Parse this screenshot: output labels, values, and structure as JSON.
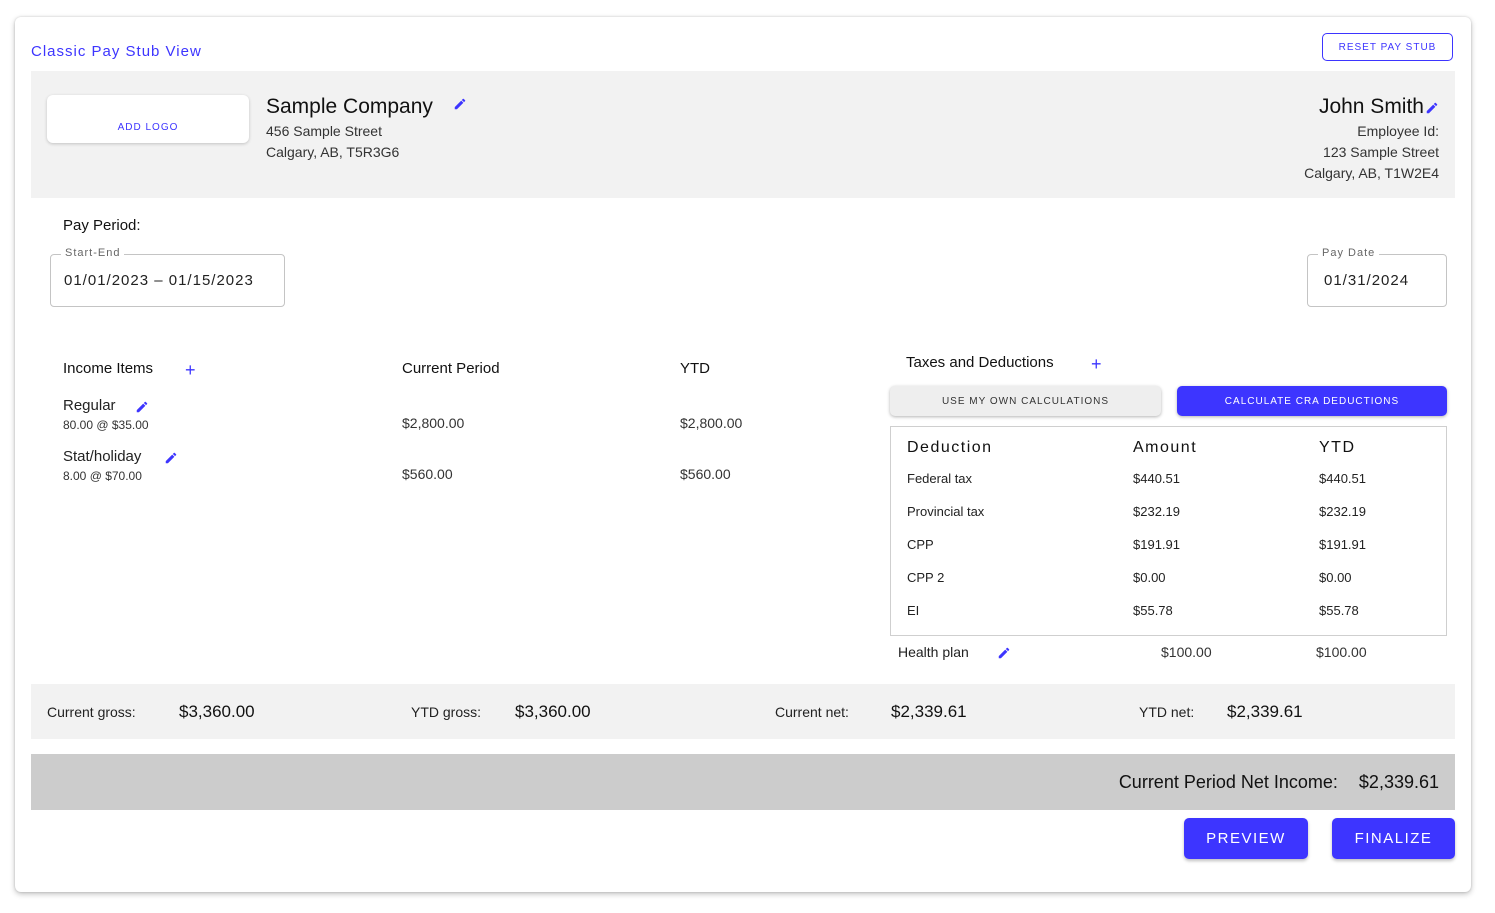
{
  "title": "Classic Pay Stub View",
  "reset_label": "RESET PAY STUB",
  "company": {
    "logo_label": "ADD LOGO",
    "name": "Sample Company",
    "address_line1": "456 Sample Street",
    "address_line2": "Calgary, AB, T5R3G6"
  },
  "employee": {
    "name": "John Smith",
    "id_label": "Employee Id:",
    "address_line1": "123 Sample Street",
    "address_line2": "Calgary, AB, T1W2E4"
  },
  "pay_period": {
    "heading": "Pay Period:",
    "range_label": "Start-End",
    "range_value": "01/01/2023 – 01/15/2023",
    "pay_date_label": "Pay Date",
    "pay_date_value": "01/31/2024"
  },
  "income": {
    "heading": "Income Items",
    "col_current": "Current Period",
    "col_ytd": "YTD",
    "items": [
      {
        "name": "Regular",
        "detail": "80.00 @ $35.00",
        "current": "$2,800.00",
        "ytd": "$2,800.00"
      },
      {
        "name": "Stat/holiday",
        "detail": "8.00 @ $70.00",
        "current": "$560.00",
        "ytd": "$560.00"
      }
    ]
  },
  "taxes": {
    "heading": "Taxes and Deductions",
    "own_calc_label": "USE MY OWN CALCULATIONS",
    "cra_calc_label": "CALCULATE CRA DEDUCTIONS",
    "col_deduction": "Deduction",
    "col_amount": "Amount",
    "col_ytd": "YTD",
    "rows": [
      {
        "name": "Federal tax",
        "amount": "$440.51",
        "ytd": "$440.51"
      },
      {
        "name": "Provincial tax",
        "amount": "$232.19",
        "ytd": "$232.19"
      },
      {
        "name": "CPP",
        "amount": "$191.91",
        "ytd": "$191.91"
      },
      {
        "name": "CPP 2",
        "amount": "$0.00",
        "ytd": "$0.00"
      },
      {
        "name": "EI",
        "amount": "$55.78",
        "ytd": "$55.78"
      }
    ],
    "extra": {
      "name": "Health plan",
      "amount": "$100.00",
      "ytd": "$100.00"
    }
  },
  "totals": {
    "current_gross_label": "Current gross:",
    "current_gross": "$3,360.00",
    "ytd_gross_label": "YTD gross:",
    "ytd_gross": "$3,360.00",
    "current_net_label": "Current net:",
    "current_net": "$2,339.61",
    "ytd_net_label": "YTD net:",
    "ytd_net": "$2,339.61"
  },
  "net_income": {
    "label": "Current Period Net Income:",
    "value": "$2,339.61"
  },
  "actions": {
    "preview_label": "PREVIEW",
    "finalize_label": "FINALIZE"
  },
  "colors": {
    "accent": "#3d35ff",
    "band": "#f2f2f2",
    "net_band": "#cccccc"
  },
  "icons": [
    "pencil-icon",
    "plus-icon"
  ]
}
